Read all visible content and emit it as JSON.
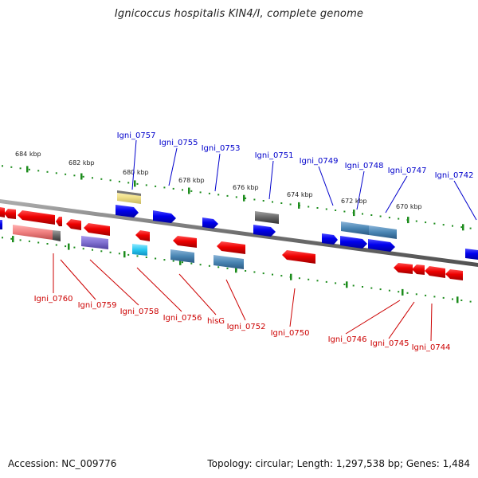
{
  "title": "Ignicoccus hospitalis KIN4/I, complete genome",
  "footer": {
    "accession": "Accession: NC_009776",
    "summary": "Topology: circular; Length: 1,297,538 bp; Genes: 1,484"
  },
  "colors": {
    "backbone": "#808080",
    "tick": "#1c8c1c",
    "forward_gene": "#0000ee",
    "reverse_gene": "#ee0000",
    "forward_label": "#0000cc",
    "reverse_label": "#cc0000",
    "rna_steel": "#4a86b4",
    "pseudo_gray": "#666666",
    "pale_yellow": "#f0e08a",
    "salmon": "#f08080",
    "slate_purple": "#7f6fd0",
    "cyan": "#28c8f0"
  },
  "scale_labels": [
    "684 kbp",
    "682 kbp",
    "680 kbp",
    "678 kbp",
    "676 kbp",
    "674 kbp",
    "672 kbp",
    "670 kbp"
  ],
  "forward_labels": [
    "Igni_0757",
    "Igni_0755",
    "Igni_0753",
    "Igni_0751",
    "Igni_0749",
    "Igni_0748",
    "Igni_0747",
    "Igni_0742"
  ],
  "reverse_labels": [
    "Igni_0760",
    "Igni_0759",
    "Igni_0758",
    "Igni_0756",
    "hisG",
    "Igni_0752",
    "Igni_0750",
    "Igni_0746",
    "Igni_0745",
    "Igni_0744"
  ]
}
